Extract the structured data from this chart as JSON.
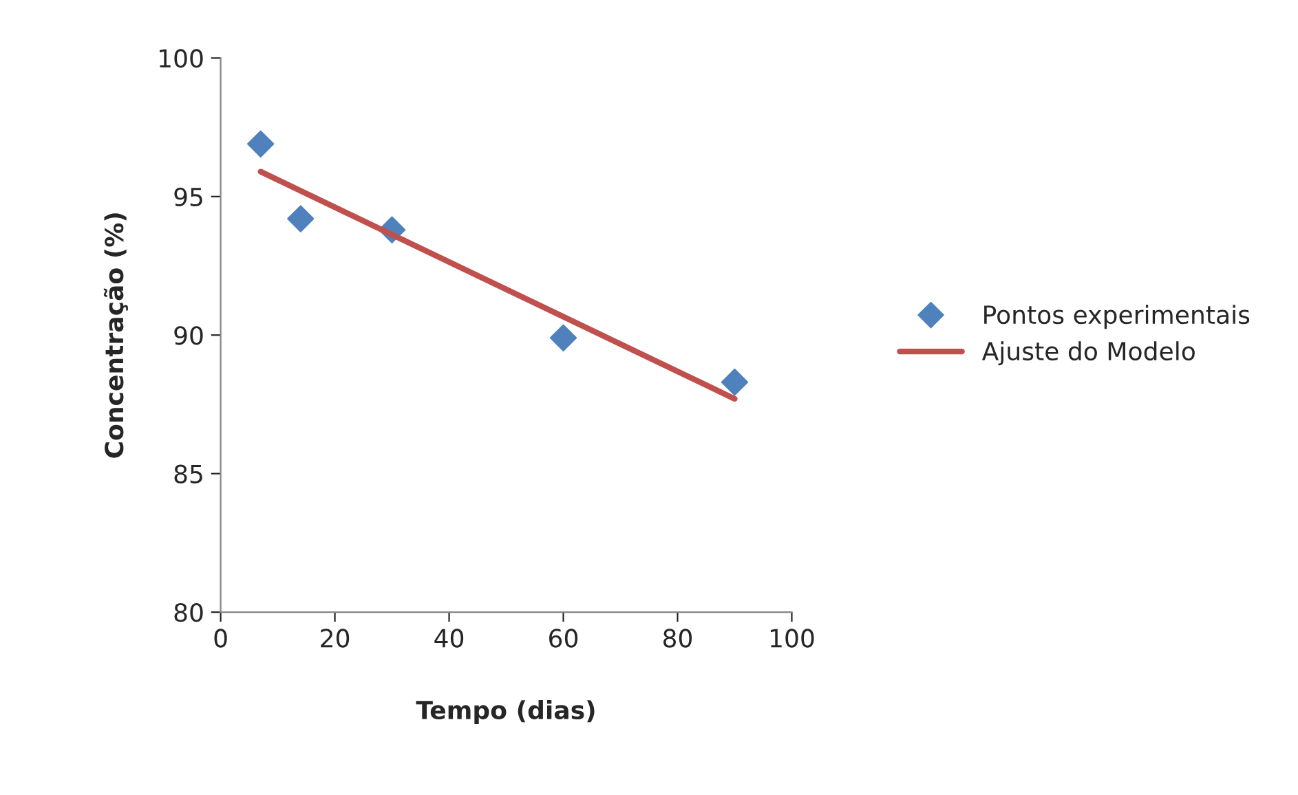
{
  "chart_data": {
    "type": "scatter",
    "xlabel": "Tempo (dias)",
    "ylabel": "Concentração (%)",
    "series": [
      {
        "name": "Pontos experimentais",
        "color": "#4f81bd",
        "marker": "diamond",
        "x": [
          7,
          14,
          30,
          60,
          90
        ],
        "values": [
          96.9,
          94.2,
          93.8,
          89.9,
          88.3
        ]
      },
      {
        "name": "Ajuste do Modelo",
        "type": "line",
        "color": "#c0504d",
        "marker": "none",
        "line_style": "solid",
        "x": [
          7,
          90
        ],
        "values": [
          95.9,
          87.7
        ]
      }
    ],
    "xlim": [
      0,
      100
    ],
    "xticks": [
      0,
      20,
      40,
      60,
      80,
      100
    ],
    "ylim": [
      80,
      100
    ],
    "yticks": [
      80,
      85,
      90,
      95,
      100
    ],
    "grid": false,
    "legend": "right"
  }
}
